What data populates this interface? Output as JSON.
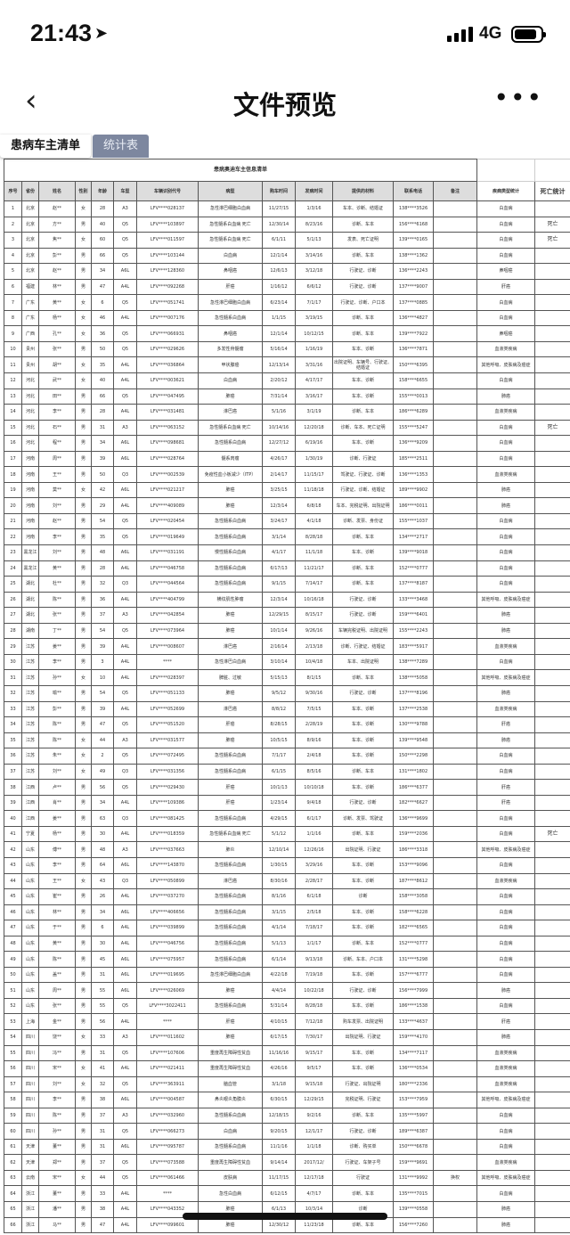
{
  "status": {
    "time": "21:43",
    "network": "4G"
  },
  "nav": {
    "title": "文件预览",
    "back": "‹",
    "more": "•••"
  },
  "tabs": [
    "患病车主清单",
    "统计表"
  ],
  "table": {
    "title": "患病奥迪车主信息清单",
    "headers": [
      "序号",
      "省份",
      "姓名",
      "性别",
      "年龄",
      "车型",
      "车辆识别代号",
      "病型",
      "购车时间",
      "发病时间",
      "提供的材料",
      "联系电话",
      "备注"
    ],
    "stat_headers": [
      "疾病类型统计",
      "死亡统计"
    ],
    "rows": [
      [
        "1",
        "北京",
        "赵**",
        "女",
        "28",
        "A3",
        "LFV****028137",
        "急性淋巴细胞白血病",
        "11/27/15",
        "1/3/16",
        "车本、诊断、结婚证",
        "138****3526",
        "",
        "白血病",
        ""
      ],
      [
        "2",
        "北京",
        "方**",
        "男",
        "40",
        "Q5",
        "LFV****103897",
        "急性髓系白血病 死亡",
        "12/30/14",
        "8/23/16",
        "诊断、车本",
        "156****6168",
        "",
        "白血病",
        "死亡"
      ],
      [
        "3",
        "北京",
        "焦**",
        "女",
        "60",
        "Q5",
        "LFV****011597",
        "急性髓系白血病 死亡",
        "6/1/11",
        "5/1/13",
        "发表、死亡证明",
        "139****0165",
        "",
        "白血病",
        "死亡"
      ],
      [
        "4",
        "北京",
        "彭**",
        "男",
        "66",
        "Q5",
        "LFV****103144",
        "白血病",
        "12/1/14",
        "3/14/16",
        "诊断、车本",
        "138****1362",
        "",
        "白血病",
        ""
      ],
      [
        "5",
        "北京",
        "赵**",
        "男",
        "34",
        "A6L",
        "LFV****128360",
        "鼻咽癌",
        "12/6/13",
        "3/12/18",
        "行驶证、诊断",
        "136****2243",
        "",
        "鼻咽癌",
        ""
      ],
      [
        "6",
        "福建",
        "林**",
        "男",
        "47",
        "A4L",
        "LFV****092268",
        "肝癌",
        "1/16/12",
        "6/6/12",
        "行驶证、诊断",
        "137****9007",
        "",
        "肝癌",
        ""
      ],
      [
        "7",
        "广东",
        "黄**",
        "女",
        "6",
        "Q5",
        "LFV****051741",
        "急性淋巴细胞白血病",
        "6/23/14",
        "7/1/17",
        "行驶证、诊断、户口本",
        "137****0885",
        "",
        "白血病",
        ""
      ],
      [
        "8",
        "广东",
        "杨**",
        "女",
        "46",
        "A4L",
        "LFV****007176",
        "急性髓系白血病",
        "1/1/15",
        "3/19/15",
        "诊断、车本",
        "136****4827",
        "",
        "白血病",
        ""
      ],
      [
        "9",
        "广西",
        "孔**",
        "女",
        "36",
        "Q5",
        "LFV****066931",
        "鼻咽癌",
        "12/1/14",
        "10/12/15",
        "诊断、车本",
        "139****7922",
        "",
        "鼻咽癌",
        ""
      ],
      [
        "10",
        "贵州",
        "张**",
        "男",
        "50",
        "Q5",
        "LFV****029626",
        "多发性骨髓瘤",
        "5/16/14",
        "1/16/19",
        "车本、诊断",
        "136****7871",
        "",
        "血液类疾病",
        ""
      ],
      [
        "11",
        "贵州",
        "胡**",
        "女",
        "35",
        "A4L",
        "LFV****036864",
        "甲状腺癌",
        "12/13/14",
        "3/31/16",
        "出院证明、车辆号、行驶证、结婚证",
        "150****6395",
        "",
        "其他呼吸、皮肤病及癌症",
        ""
      ],
      [
        "12",
        "河北",
        "武**",
        "女",
        "40",
        "A4L",
        "LFV****003621",
        "白血病",
        "2/20/12",
        "4/17/17",
        "车本、诊断",
        "158****6655",
        "",
        "白血病",
        ""
      ],
      [
        "13",
        "河北",
        "田**",
        "男",
        "66",
        "Q5",
        "LFV****047495",
        "肺癌",
        "7/31/14",
        "3/16/17",
        "车本、诊断",
        "155****0013",
        "",
        "肺癌",
        ""
      ],
      [
        "14",
        "河北",
        "李**",
        "男",
        "28",
        "A4L",
        "LFV****031481",
        "淋巴癌",
        "5/1/16",
        "3/1/19",
        "诊断、车本",
        "186****6289",
        "",
        "血液类疾病",
        ""
      ],
      [
        "15",
        "河北",
        "石**",
        "男",
        "31",
        "A3",
        "LFV****063152",
        "急性髓系白血病 死亡",
        "10/14/16",
        "12/20/18",
        "诊断、车本、死亡证明",
        "155****5247",
        "",
        "白血病",
        "死亡"
      ],
      [
        "16",
        "河北",
        "程**",
        "男",
        "34",
        "A6L",
        "LFV****098681",
        "急性髓系白血病",
        "12/27/12",
        "6/19/16",
        "车本、诊断",
        "136****9209",
        "",
        "白血病",
        ""
      ],
      [
        "17",
        "河南",
        "周**",
        "男",
        "39",
        "A6L",
        "LFV****028764",
        "髓系肉瘤",
        "4/26/17",
        "1/30/19",
        "诊断、行驶证",
        "185****2511",
        "",
        "白血病",
        ""
      ],
      [
        "18",
        "河南",
        "王**",
        "男",
        "50",
        "Q3",
        "LFV****002539",
        "免疫性血小板减少（ITP）",
        "2/14/17",
        "11/15/17",
        "驾驶证、行驶证、诊断",
        "136****1353",
        "",
        "血液类疾病",
        ""
      ],
      [
        "19",
        "河南",
        "莫**",
        "女",
        "42",
        "A6L",
        "LFV****021217",
        "肺癌",
        "3/25/15",
        "11/18/18",
        "行驶证、诊断、结婚证",
        "189****9902",
        "",
        "肺癌",
        ""
      ],
      [
        "20",
        "河南",
        "刘**",
        "男",
        "29",
        "A4L",
        "LFV****409089",
        "肺癌",
        "12/3/14",
        "6/8/18",
        "车本、完税证明、出院证明",
        "186****0011",
        "",
        "肺癌",
        ""
      ],
      [
        "21",
        "河南",
        "赵**",
        "男",
        "54",
        "Q5",
        "LFV****020454",
        "急性髓系白血病",
        "3/24/17",
        "4/1/18",
        "诊断、发票、身份证",
        "155****1037",
        "",
        "白血病",
        ""
      ],
      [
        "22",
        "河南",
        "李**",
        "男",
        "35",
        "Q5",
        "LFV****019649",
        "急性髓系白血病",
        "3/1/14",
        "8/28/18",
        "诊断、车本",
        "134****2717",
        "",
        "白血病",
        ""
      ],
      [
        "23",
        "黑龙江",
        "刘**",
        "男",
        "48",
        "A6L",
        "LFV****031191",
        "慢性髓系白血病",
        "4/1/17",
        "11/1/18",
        "车本、诊断",
        "139****9018",
        "",
        "白血病",
        ""
      ],
      [
        "24",
        "黑龙江",
        "黄**",
        "男",
        "28",
        "A4L",
        "LFV****046758",
        "急性髓系白血病",
        "6/17/13",
        "11/21/17",
        "诊断、车本",
        "152****0777",
        "",
        "白血病",
        ""
      ],
      [
        "25",
        "湖北",
        "杜**",
        "男",
        "32",
        "Q3",
        "LFV****044564",
        "急性髓系白血病",
        "9/1/15",
        "7/14/17",
        "诊断、车本",
        "137****8187",
        "",
        "白血病",
        ""
      ],
      [
        "26",
        "湖北",
        "陈**",
        "男",
        "36",
        "A4L",
        "LFV****404799",
        "横纹肌性肿瘤",
        "12/3/14",
        "10/16/18",
        "行驶证、诊断",
        "133****3468",
        "",
        "其他呼吸、皮肤病及癌症",
        ""
      ],
      [
        "27",
        "湖北",
        "张**",
        "男",
        "37",
        "A3",
        "LFV****042854",
        "肺癌",
        "12/29/15",
        "8/15/17",
        "行驶证、诊断",
        "159****6401",
        "",
        "肺癌",
        ""
      ],
      [
        "28",
        "湖南",
        "丁**",
        "男",
        "54",
        "Q5",
        "LFV****073964",
        "肺癌",
        "10/1/14",
        "9/26/16",
        "车辆完税证明、出院证明",
        "155****2243",
        "",
        "肺癌",
        ""
      ],
      [
        "29",
        "江苏",
        "姜**",
        "男",
        "39",
        "A4L",
        "LFV****008607",
        "淋巴癌",
        "2/16/14",
        "2/13/18",
        "诊断、行驶证、结婚证",
        "183****5917",
        "",
        "血液类疾病",
        ""
      ],
      [
        "30",
        "江苏",
        "李**",
        "男",
        "3",
        "A4L",
        "****",
        "急性淋巴白血病",
        "3/10/14",
        "10/4/18",
        "车本、出院证明",
        "138****7289",
        "",
        "白血病",
        ""
      ],
      [
        "31",
        "江苏",
        "孙**",
        "女",
        "10",
        "A4L",
        "LFV****028397",
        "脾脏、过敏",
        "5/15/13",
        "8/1/15",
        "诊断、车本",
        "138****5058",
        "",
        "其他呼吸、皮肤病及癌症",
        ""
      ],
      [
        "32",
        "江苏",
        "喻**",
        "男",
        "54",
        "Q5",
        "LFV****051133",
        "肺癌",
        "9/5/12",
        "9/30/16",
        "行驶证、诊断",
        "137****8196",
        "",
        "肺癌",
        ""
      ],
      [
        "33",
        "江苏",
        "彭**",
        "男",
        "39",
        "A4L",
        "LFV****052699",
        "淋巴癌",
        "8/8/12",
        "7/5/15",
        "车本、诊断",
        "137****2538",
        "",
        "血液类疾病",
        ""
      ],
      [
        "34",
        "江苏",
        "陈**",
        "男",
        "47",
        "Q5",
        "LFV****051520",
        "肝癌",
        "8/28/15",
        "2/28/19",
        "车本、诊断",
        "130****9788",
        "",
        "肝癌",
        ""
      ],
      [
        "35",
        "江苏",
        "陈**",
        "女",
        "44",
        "A3",
        "LFV****031577",
        "肺癌",
        "10/5/15",
        "8/9/16",
        "车本、诊断",
        "139****9548",
        "",
        "肺癌",
        ""
      ],
      [
        "36",
        "江苏",
        "朱**",
        "女",
        "2",
        "Q5",
        "LFV****072495",
        "急性髓系白血病",
        "7/1/17",
        "2/4/18",
        "车本、诊断",
        "150****2298",
        "",
        "白血病",
        ""
      ],
      [
        "37",
        "江苏",
        "刘**",
        "女",
        "49",
        "Q3",
        "LFV****031356",
        "急性髓系白血病",
        "6/1/15",
        "8/5/16",
        "诊断、车本",
        "131****1802",
        "",
        "白血病",
        ""
      ],
      [
        "38",
        "江西",
        "卢**",
        "男",
        "56",
        "Q5",
        "LFV****029430",
        "肝癌",
        "10/1/13",
        "10/10/18",
        "车本、诊断",
        "186****6377",
        "",
        "肝癌",
        ""
      ],
      [
        "39",
        "江西",
        "肖**",
        "男",
        "34",
        "A4L",
        "LFV****109386",
        "肝癌",
        "1/23/14",
        "9/4/18",
        "行驶证、诊断",
        "182****6627",
        "",
        "肝癌",
        ""
      ],
      [
        "40",
        "江西",
        "姜**",
        "男",
        "63",
        "Q3",
        "LFV****081425",
        "急性髓系白血病",
        "4/29/15",
        "6/1/17",
        "诊断、发票、驾驶证",
        "136****9699",
        "",
        "白血病",
        ""
      ],
      [
        "41",
        "宁夏",
        "杨**",
        "男",
        "30",
        "A4L",
        "LFV****018359",
        "急性髓系白血病 死亡",
        "5/1/12",
        "1/1/16",
        "诊断、车本",
        "159****2036",
        "",
        "白血病",
        "死亡"
      ],
      [
        "42",
        "山东",
        "傅**",
        "男",
        "48",
        "A3",
        "LFV****037663",
        "肺炎",
        "12/10/14",
        "12/26/16",
        "出院证明、行驶证",
        "186****3318",
        "",
        "其他呼吸、皮肤病及癌症",
        ""
      ],
      [
        "43",
        "山东",
        "李**",
        "男",
        "64",
        "A6L",
        "LFV****143870",
        "急性髓系白血病",
        "1/30/15",
        "3/29/16",
        "车本、诊断",
        "153****9096",
        "",
        "白血病",
        ""
      ],
      [
        "44",
        "山东",
        "王**",
        "女",
        "43",
        "Q3",
        "LFV****050899",
        "淋巴癌",
        "8/30/16",
        "2/28/17",
        "车本、诊断",
        "187****8612",
        "",
        "血液类疾病",
        ""
      ],
      [
        "45",
        "山东",
        "崔**",
        "男",
        "26",
        "A4L",
        "LFV****037270",
        "急性髓系白血病",
        "8/1/16",
        "6/1/18",
        "诊断",
        "158****3058",
        "",
        "白血病",
        ""
      ],
      [
        "46",
        "山东",
        "林**",
        "男",
        "34",
        "A6L",
        "LFV****406656",
        "急性髓系白血病",
        "3/1/15",
        "2/5/18",
        "车本、诊断",
        "158****6228",
        "",
        "白血病",
        ""
      ],
      [
        "47",
        "山东",
        "于**",
        "男",
        "6",
        "A4L",
        "LFV****039899",
        "急性髓系白血病",
        "4/1/14",
        "7/18/17",
        "车本、诊断",
        "182****6565",
        "",
        "白血病",
        ""
      ],
      [
        "48",
        "山东",
        "黄**",
        "男",
        "30",
        "A4L",
        "LFV****046756",
        "急性髓系白血病",
        "5/1/13",
        "1/1/17",
        "诊断、车本",
        "152****0777",
        "",
        "白血病",
        ""
      ],
      [
        "49",
        "山东",
        "陈**",
        "男",
        "45",
        "A6L",
        "LFV****075957",
        "急性髓系白血病",
        "6/1/14",
        "9/13/18",
        "诊断、车本、户口本",
        "131****5298",
        "",
        "白血病",
        ""
      ],
      [
        "50",
        "山东",
        "盖**",
        "男",
        "31",
        "A6L",
        "LFV****019695",
        "急性淋巴细胞白血病",
        "4/22/18",
        "7/19/18",
        "车本、诊断",
        "157****6777",
        "",
        "白血病",
        ""
      ],
      [
        "51",
        "山东",
        "周**",
        "男",
        "55",
        "A6L",
        "LFV****026069",
        "肺癌",
        "4/4/14",
        "10/22/18",
        "行驶证、诊断",
        "156****7999",
        "",
        "肺癌",
        ""
      ],
      [
        "52",
        "山东",
        "张**",
        "男",
        "55",
        "Q5",
        "LFV****3022411",
        "急性髓系白血病",
        "5/31/14",
        "8/28/18",
        "车本、诊断",
        "186****1538",
        "",
        "白血病",
        ""
      ],
      [
        "53",
        "上海",
        "金**",
        "男",
        "56",
        "A4L",
        "****",
        "肝癌",
        "4/10/15",
        "7/12/18",
        "购车发票、出院证明",
        "133****4637",
        "",
        "肝癌",
        ""
      ],
      [
        "54",
        "四川",
        "饶**",
        "女",
        "33",
        "A3",
        "LFV****011602",
        "肺癌",
        "6/17/15",
        "7/30/17",
        "出院证明、行驶证",
        "159****4170",
        "",
        "肺癌",
        ""
      ],
      [
        "55",
        "四川",
        "冯**",
        "男",
        "31",
        "Q5",
        "LFV****107606",
        "重度再生障碍性贫血",
        "11/16/16",
        "9/15/17",
        "车本、诊断",
        "134****7117",
        "",
        "血液类疾病",
        ""
      ],
      [
        "56",
        "四川",
        "宋**",
        "女",
        "41",
        "A4L",
        "LFV****021411",
        "重度再生障碍性贫血",
        "4/26/16",
        "9/5/17",
        "车本、诊断",
        "136****0534",
        "",
        "血液类疾病",
        ""
      ],
      [
        "57",
        "四川",
        "刘**",
        "女",
        "32",
        "Q5",
        "LFV****363911",
        "脑血管",
        "3/1/18",
        "9/15/18",
        "行驶证、出院证明",
        "180****2336",
        "",
        "血液类疾病",
        ""
      ],
      [
        "58",
        "四川",
        "李**",
        "男",
        "38",
        "A6L",
        "LFV****004587",
        "鼻炎眼炎角膜炎",
        "6/30/15",
        "12/29/15",
        "完税证明、行驶证",
        "153****7959",
        "",
        "其他呼吸、皮肤病及癌症",
        ""
      ],
      [
        "59",
        "四川",
        "陈**",
        "男",
        "37",
        "A3",
        "LFV****032960",
        "急性髓系白血病",
        "12/18/15",
        "9/2/16",
        "诊断、车本",
        "135****5997",
        "",
        "白血病",
        ""
      ],
      [
        "60",
        "四川",
        "孙**",
        "男",
        "31",
        "Q5",
        "LFV****066273",
        "白血病",
        "9/20/15",
        "12/1/17",
        "行驶证、诊断",
        "189****6387",
        "",
        "白血病",
        ""
      ],
      [
        "61",
        "天津",
        "董**",
        "男",
        "31",
        "A6L",
        "LFV****095787",
        "急性髓系白血病",
        "11/1/16",
        "1/1/18",
        "诊断、购买单",
        "150****6678",
        "",
        "白血病",
        ""
      ],
      [
        "62",
        "天津",
        "郑**",
        "男",
        "37",
        "Q5",
        "LFV****073588",
        "重度再生障碍性贫血",
        "9/14/14",
        "2017/12/",
        "行驶证、车架子号",
        "159****9691",
        "",
        "血液类疾病",
        ""
      ],
      [
        "63",
        "云南",
        "宋**",
        "女",
        "44",
        "Q5",
        "LFV****061466",
        "皮肤病",
        "11/17/15",
        "12/17/18",
        "行驶证",
        "131****9992",
        "换权",
        "其他呼吸、皮肤病及癌症",
        ""
      ],
      [
        "64",
        "浙江",
        "董**",
        "男",
        "33",
        "A4L",
        "****",
        "急性白血病",
        "6/12/15",
        "4/7/17",
        "诊断、车本",
        "135****7015",
        "",
        "白血病",
        ""
      ],
      [
        "65",
        "浙江",
        "潘**",
        "男",
        "38",
        "A4L",
        "LFV****043352",
        "肺癌",
        "6/1/13",
        "10/3/14",
        "诊断",
        "139****0558",
        "",
        "肺癌",
        ""
      ],
      [
        "66",
        "浙江",
        "马**",
        "男",
        "47",
        "A4L",
        "LFV****099601",
        "肺癌",
        "12/30/12",
        "11/23/18",
        "诊断、车本",
        "156****7260",
        "",
        "肺癌",
        ""
      ]
    ]
  }
}
